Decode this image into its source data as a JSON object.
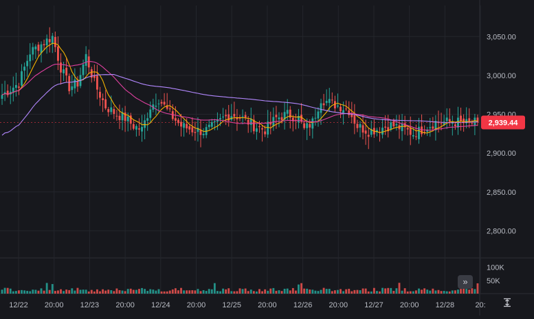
{
  "colors": {
    "background": "#17181d",
    "grid": "#24262c",
    "up": "#26a69a",
    "down": "#ef5350",
    "ma_short": "#f5b400",
    "ma_medium": "#e040a0",
    "ma_long": "#b388ff",
    "price_badge": "#f23645",
    "axis_text": "#b9bcc4"
  },
  "price_badge": {
    "value": "2,939.44",
    "price": 2939.44
  },
  "icons": {
    "scroll_to_latest": "double-chevron-right-icon",
    "auto_scale": "vertical-expand-icon"
  },
  "chart_data": {
    "type": "candlestick",
    "price_axis": {
      "ticks": [
        2800,
        2850,
        2900,
        2950,
        3000,
        3050
      ],
      "tick_labels": [
        "2,800.00",
        "2,850.00",
        "2,900.00",
        "2,950.00",
        "3,000.00",
        "3,050.00"
      ],
      "range": [
        2765,
        3090
      ]
    },
    "volume_axis": {
      "ticks": [
        50000,
        100000
      ],
      "tick_labels": [
        "50K",
        "100K"
      ],
      "range": [
        0,
        130000
      ]
    },
    "time_axis": {
      "labels": [
        "12/22",
        "20:00",
        "12/23",
        "20:00",
        "12/24",
        "20:00",
        "12/25",
        "20:00",
        "12/26",
        "20:00",
        "12/27",
        "20:00",
        "12/28",
        "20:"
      ],
      "bars_per_label": 13.2
    },
    "key_closes": [
      [
        0,
        2975
      ],
      [
        6,
        2990
      ],
      [
        10,
        3030
      ],
      [
        14,
        3040
      ],
      [
        18,
        3050
      ],
      [
        21,
        3010
      ],
      [
        24,
        2985
      ],
      [
        27,
        2990
      ],
      [
        30,
        3025
      ],
      [
        33,
        2990
      ],
      [
        37,
        2960
      ],
      [
        41,
        2950
      ],
      [
        44,
        2945
      ],
      [
        47,
        2935
      ],
      [
        50,
        2930
      ],
      [
        53,
        2960
      ],
      [
        56,
        2970
      ],
      [
        60,
        2950
      ],
      [
        64,
        2935
      ],
      [
        68,
        2930
      ],
      [
        72,
        2928
      ],
      [
        76,
        2935
      ],
      [
        79,
        2945
      ],
      [
        82,
        2950
      ],
      [
        86,
        2945
      ],
      [
        90,
        2935
      ],
      [
        94,
        2930
      ],
      [
        98,
        2945
      ],
      [
        102,
        2950
      ],
      [
        106,
        2945
      ],
      [
        108,
        2930
      ],
      [
        111,
        2940
      ],
      [
        114,
        2970
      ],
      [
        117,
        2965
      ],
      [
        121,
        2960
      ],
      [
        124,
        2955
      ],
      [
        127,
        2935
      ],
      [
        131,
        2928
      ],
      [
        135,
        2932
      ],
      [
        139,
        2936
      ],
      [
        143,
        2932
      ],
      [
        147,
        2925
      ],
      [
        151,
        2932
      ],
      [
        155,
        2940
      ],
      [
        159,
        2940
      ],
      [
        163,
        2940
      ],
      [
        166,
        2938
      ],
      [
        170,
        2939.44
      ]
    ],
    "ma_periods": [
      7,
      25,
      99
    ]
  }
}
